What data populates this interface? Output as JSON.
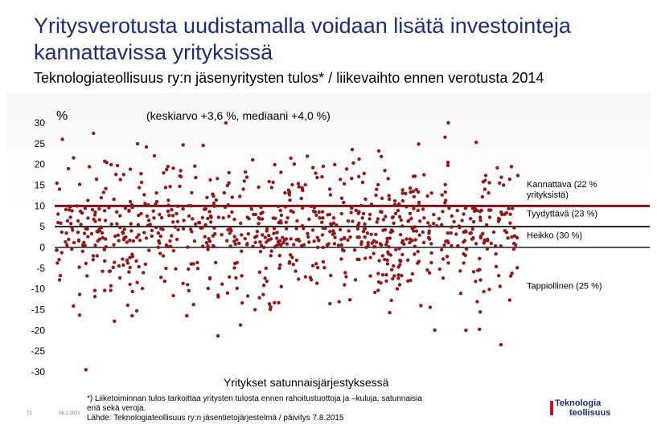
{
  "slide": {
    "title": "Yritysverotusta uudistamalla voidaan lisätä investointeja kannattavissa yrityksissä",
    "subtitle": "Teknologiateollisuus ry:n jäsenyritysten tulos* / liikevaihto ennen verotusta 2014",
    "footnote_lines": [
      "*) Liiketoiminnan tulos tarkoittaa yritysten tulosta ennen rahoitustuottoja ja –kuluja, satunnaisia",
      "eriä sekä veroja.",
      "Lähde: Teknologiateollisuus ry:n jäsentietojärjestelmä / päivitys 7.8.2015"
    ],
    "slide_number": "71",
    "slide_date": "28.2.2021",
    "logo": {
      "line1": "Teknologia",
      "line2": "teollisuus"
    }
  },
  "colors": {
    "title": "#1f2d6e",
    "points": "#8b1a1a",
    "threshold_10": "#7a1418",
    "threshold_5": "#222222",
    "threshold_0": "#555555"
  },
  "chart_data": {
    "type": "scatter",
    "title": "(keskiarvo +3,6 %, mediaani +4,0 %)",
    "ylabel": "%",
    "xlabel": "Yritykset satunnaisjärjestyksessä",
    "ylim": [
      -30,
      30
    ],
    "yticks": [
      30,
      25,
      20,
      15,
      10,
      5,
      0,
      -5,
      -10,
      -15,
      -20,
      -25,
      -30
    ],
    "ytick_labels": [
      "30",
      "25",
      "20",
      "15",
      "10",
      "5",
      "0",
      "-5",
      "-10",
      "-15",
      "-20",
      "-25",
      "-30"
    ],
    "xlim": [
      0,
      1000
    ],
    "n_points": 900,
    "grid": false,
    "thresholds": [
      {
        "y": 10,
        "style": "thick-dark-red"
      },
      {
        "y": 5,
        "style": "black"
      },
      {
        "y": 0,
        "style": "dark-gray"
      }
    ],
    "category_labels": [
      {
        "text": "Kannattava (22 % yrityksistä)",
        "text_line1": "Kannattava (22 %",
        "text_line2": "yrityksistä)",
        "y": 14.5
      },
      {
        "text": "Tyydyttävä (23 %)",
        "y": 7.5
      },
      {
        "text": "Heikko (30 %)",
        "y": 2.2
      },
      {
        "text": "Tappiollinen (25 %)",
        "y": -10
      }
    ]
  }
}
